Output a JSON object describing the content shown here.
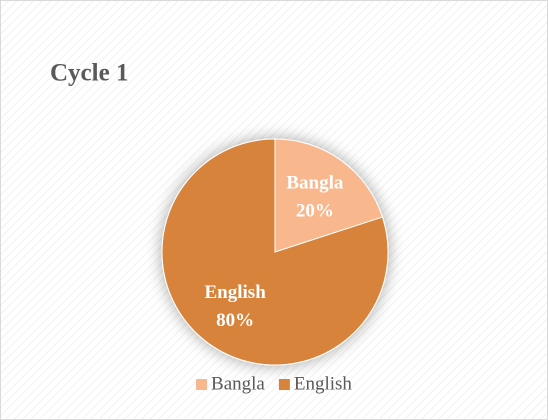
{
  "chart_data": {
    "type": "pie",
    "title": "Cycle 1",
    "categories": [
      "Bangla",
      "English"
    ],
    "values": [
      20,
      80
    ],
    "value_labels": [
      "20%",
      "80%"
    ],
    "colors": [
      "#f8b78c",
      "#d8833b"
    ],
    "legend": "bottom"
  }
}
